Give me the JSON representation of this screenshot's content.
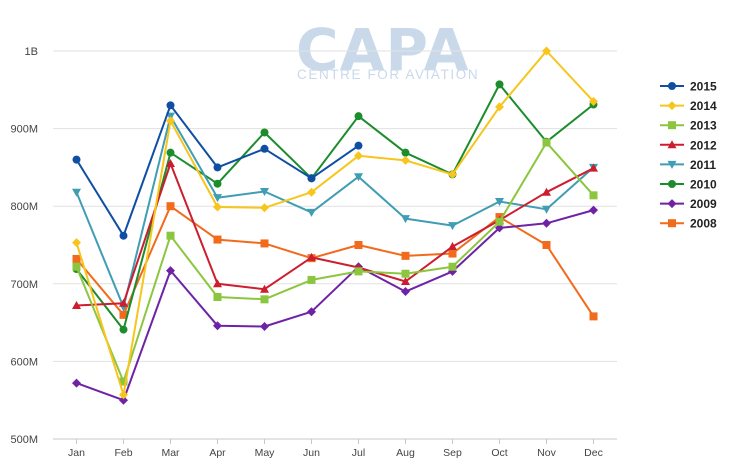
{
  "watermark": {
    "brand": "CAPA",
    "tagline": "CENTRE FOR AVIATION"
  },
  "chart_data": {
    "type": "line",
    "categories": [
      "Jan",
      "Feb",
      "Mar",
      "Apr",
      "May",
      "Jun",
      "Jul",
      "Aug",
      "Sep",
      "Oct",
      "Nov",
      "Dec"
    ],
    "y_ticks": [
      "500M",
      "600M",
      "700M",
      "800M",
      "900M",
      "1B"
    ],
    "ylim": [
      500,
      1000
    ],
    "grid": true,
    "legend_position": "right",
    "series": [
      {
        "name": "2015",
        "color": "#0e4fa3",
        "marker": "circle",
        "values": [
          860,
          762,
          930,
          850,
          874,
          836,
          878,
          null,
          null,
          null,
          null,
          null
        ]
      },
      {
        "name": "2014",
        "color": "#f7c51c",
        "marker": "diamond",
        "values": [
          753,
          557,
          910,
          799,
          798,
          818,
          865,
          859,
          841,
          928,
          1000,
          935
        ]
      },
      {
        "name": "2013",
        "color": "#8cc63f",
        "marker": "square",
        "values": [
          722,
          574,
          762,
          683,
          680,
          705,
          716,
          713,
          722,
          780,
          882,
          814
        ]
      },
      {
        "name": "2012",
        "color": "#cc1e2f",
        "marker": "triangle",
        "values": [
          672,
          675,
          855,
          700,
          693,
          734,
          721,
          703,
          748,
          782,
          818,
          849
        ]
      },
      {
        "name": "2011",
        "color": "#3f9db4",
        "marker": "triangle-down",
        "values": [
          818,
          670,
          916,
          811,
          819,
          792,
          838,
          784,
          775,
          806,
          796,
          850
        ]
      },
      {
        "name": "2010",
        "color": "#1c8c2c",
        "marker": "circle",
        "values": [
          719,
          641,
          869,
          829,
          895,
          836,
          916,
          869,
          841,
          957,
          883,
          931
        ]
      },
      {
        "name": "2009",
        "color": "#6f22a6",
        "marker": "diamond",
        "values": [
          572,
          550,
          717,
          646,
          645,
          664,
          722,
          690,
          716,
          772,
          778,
          795
        ]
      },
      {
        "name": "2008",
        "color": "#f26a1b",
        "marker": "square",
        "values": [
          732,
          660,
          800,
          757,
          752,
          733,
          750,
          736,
          739,
          786,
          750,
          658
        ]
      }
    ]
  }
}
